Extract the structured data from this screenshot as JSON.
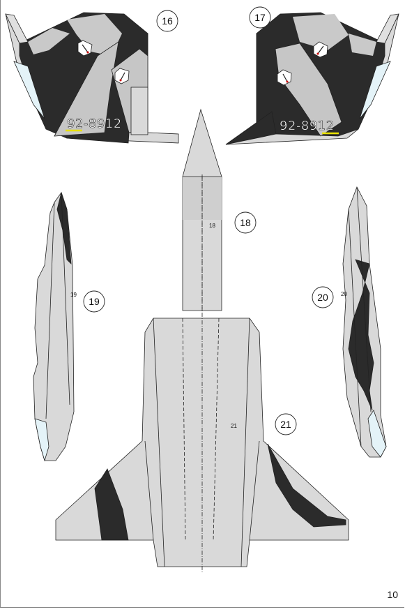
{
  "parts": {
    "p16": {
      "label": "16",
      "serial": "92-8912"
    },
    "p17": {
      "label": "17",
      "serial": "92-8912"
    },
    "p18": {
      "label": "18",
      "inner_label": "18"
    },
    "p19": {
      "label": "19",
      "inner_label": "19"
    },
    "p20": {
      "label": "20",
      "inner_label": "20"
    },
    "p21": {
      "label": "21",
      "inner_label": "21"
    }
  },
  "page": {
    "number": "10"
  },
  "colors": {
    "light_grey": "#d9d9d9",
    "mid_grey": "#c6c6c6",
    "dark": "#2b2b2b",
    "ice": "#e4f3f8",
    "accent_yellow": "#e8e000"
  },
  "icons": [
    "rocket-insignia-icon"
  ]
}
